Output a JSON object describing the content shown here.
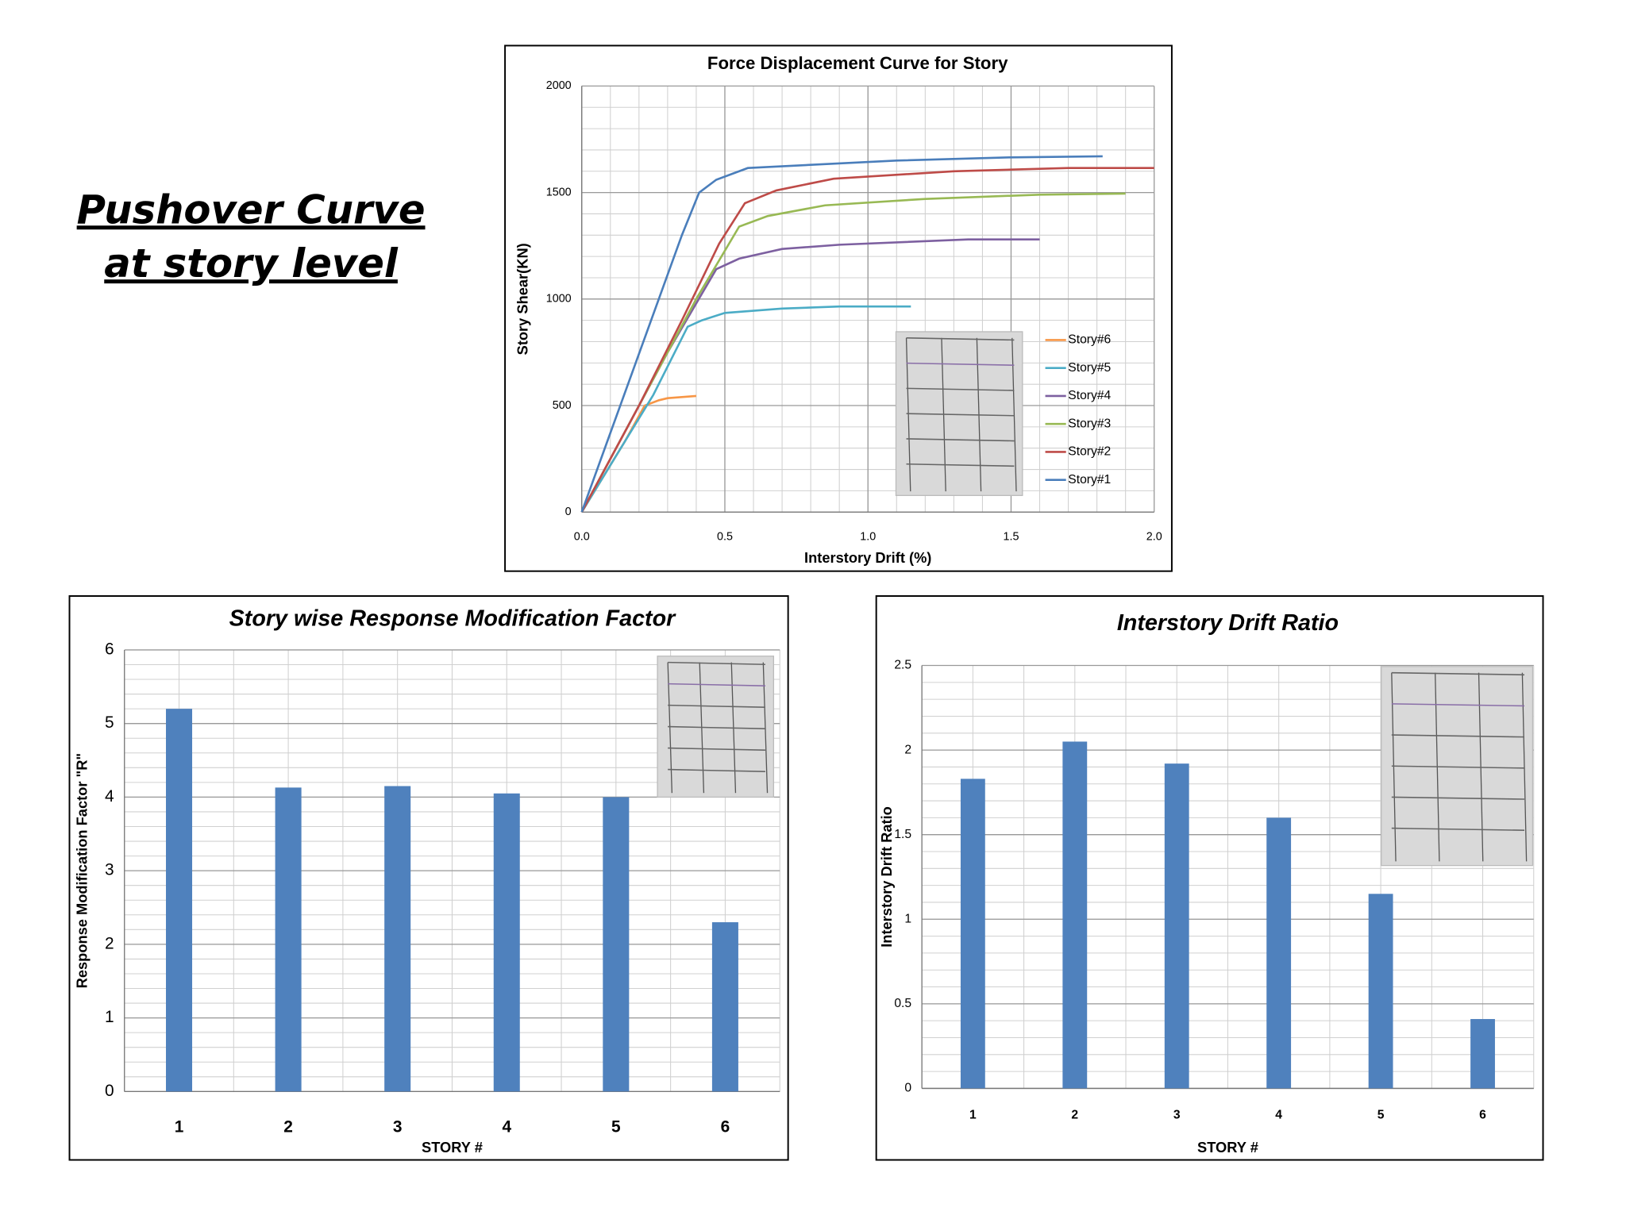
{
  "heading": [
    "Pushover Curve",
    "at story level"
  ],
  "chart_data": [
    {
      "type": "line",
      "title": "Force Displacement Curve for Story",
      "xlabel": "Interstory Drift (%)",
      "ylabel": "Story Shear(KN)",
      "xlim": [
        0,
        2
      ],
      "xticks": [
        {
          "value": 0,
          "label": "0.0"
        },
        0.5,
        {
          "value": 1,
          "label": "1.0"
        },
        1.5,
        {
          "value": 2,
          "label": "2.0"
        }
      ],
      "ylim": [
        0,
        2000
      ],
      "yticks": [
        0,
        500,
        1000,
        1500,
        2000
      ],
      "grid": true,
      "minor_grid": {
        "x": 0.1,
        "y": 100
      },
      "legend": "lower right",
      "series": [
        {
          "name": "Story#6",
          "color": "#f79646",
          "x": [
            0,
            0.15,
            0.22,
            0.27,
            0.3,
            0.4
          ],
          "values": [
            0,
            330,
            500,
            525,
            535,
            545
          ]
        },
        {
          "name": "Story#5",
          "color": "#4bacc6",
          "x": [
            0,
            0.25,
            0.37,
            0.42,
            0.5,
            0.7,
            0.9,
            1.15
          ],
          "values": [
            0,
            550,
            870,
            900,
            935,
            955,
            965,
            965
          ]
        },
        {
          "name": "Story#4",
          "color": "#7d60a0",
          "x": [
            0,
            0.2,
            0.3,
            0.47,
            0.55,
            0.7,
            0.9,
            1.35,
            1.6
          ],
          "values": [
            0,
            500,
            750,
            1140,
            1190,
            1235,
            1255,
            1280,
            1280
          ]
        },
        {
          "name": "Story#3",
          "color": "#98b954",
          "x": [
            0,
            0.2,
            0.4,
            0.55,
            0.65,
            0.85,
            1.2,
            1.6,
            1.9
          ],
          "values": [
            0,
            500,
            1000,
            1340,
            1390,
            1440,
            1470,
            1490,
            1495
          ]
        },
        {
          "name": "Story#2",
          "color": "#be4b48",
          "x": [
            0,
            0.2,
            0.35,
            0.48,
            0.57,
            0.68,
            0.88,
            1.3,
            1.7,
            2.0
          ],
          "values": [
            0,
            500,
            900,
            1260,
            1450,
            1510,
            1565,
            1600,
            1615,
            1615
          ]
        },
        {
          "name": "Story#1",
          "color": "#4a7ebb",
          "x": [
            0,
            0.35,
            0.41,
            0.47,
            0.58,
            0.8,
            1.1,
            1.5,
            1.82
          ],
          "values": [
            0,
            1300,
            1500,
            1560,
            1615,
            1630,
            1650,
            1665,
            1670
          ]
        }
      ]
    },
    {
      "type": "bar",
      "title": "Story wise Response Modification Factor",
      "xlabel": "STORY #",
      "ylabel": "Response Modification Factor \"R\"",
      "categories": [
        "1",
        "2",
        "3",
        "4",
        "5",
        "6"
      ],
      "values": [
        5.2,
        4.13,
        4.15,
        4.05,
        4.0,
        2.3
      ],
      "color": "#4f81bd",
      "ylim": [
        0,
        6
      ],
      "yticks": [
        0,
        1,
        2,
        3,
        4,
        5,
        6
      ],
      "grid": true,
      "minor_grid": {
        "y": 0.2
      }
    },
    {
      "type": "bar",
      "title": "Interstory Drift Ratio",
      "xlabel": "STORY #",
      "ylabel": "Interstory Drift Ratio",
      "categories": [
        "1",
        "2",
        "3",
        "4",
        "5",
        "6"
      ],
      "values": [
        1.83,
        2.05,
        1.92,
        1.6,
        1.15,
        0.41
      ],
      "color": "#4f81bd",
      "ylim": [
        0,
        2.5
      ],
      "yticks": [
        0,
        0.5,
        1,
        1.5,
        2,
        2.5
      ],
      "grid": true,
      "minor_grid": {
        "y": 0.1
      }
    }
  ]
}
